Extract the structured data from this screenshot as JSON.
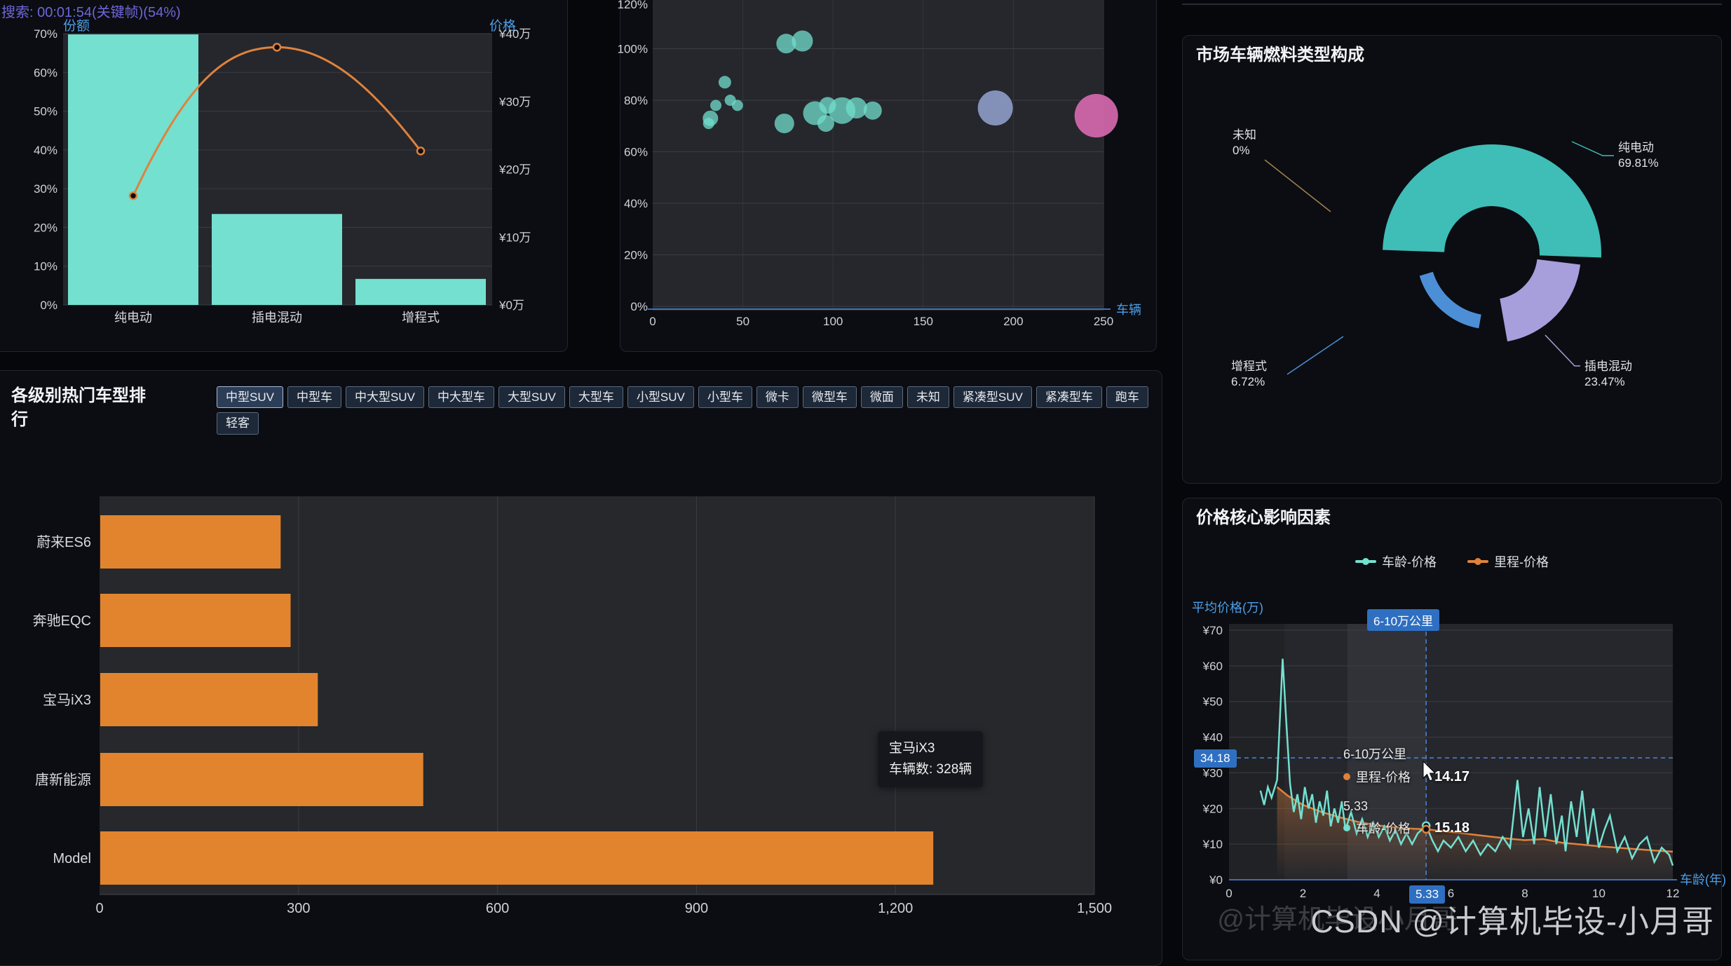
{
  "page": {
    "caption": "搜索: 00:01:54(关键帧)(54%)",
    "watermark": "CSDN @计算机毕设-小月哥",
    "watermark_ghost": "@计算机毕设小月哥"
  },
  "colors": {
    "teal": "#74e0d0",
    "orange": "#e0823c",
    "bar_orange": "#e2842e",
    "axis_blue": "#4d9fe8",
    "badge_blue": "#2f6fc1",
    "slate": "#8e9dc9",
    "pink": "#d468ae",
    "pie_teal": "#3fbdb7",
    "pie_purple": "#a79fdc",
    "pie_blue": "#4d8fd6",
    "pie_unknown_line": "#a5824f"
  },
  "share_chart": {
    "legend_left": "份额",
    "legend_right": "价格"
  },
  "fuel_panel": {
    "title": "市场车辆燃料类型构成"
  },
  "ranking_panel": {
    "title": "各级别热门车型排行",
    "filters": [
      {
        "label": "中型SUV",
        "active": true
      },
      {
        "label": "中型车"
      },
      {
        "label": "中大型SUV"
      },
      {
        "label": "中大型车"
      },
      {
        "label": "大型SUV"
      },
      {
        "label": "大型车"
      },
      {
        "label": "小型SUV"
      },
      {
        "label": "小型车"
      },
      {
        "label": "微卡"
      },
      {
        "label": "微型车"
      },
      {
        "label": "微面"
      },
      {
        "label": "未知"
      },
      {
        "label": "紧凑型SUV"
      },
      {
        "label": "紧凑型车"
      },
      {
        "label": "跑车"
      },
      {
        "label": "轻客"
      }
    ],
    "tooltip": {
      "line1": "宝马iX3",
      "line2": "车辆数: 328辆"
    }
  },
  "price_panel": {
    "title": "价格核心影响因素",
    "legend": [
      {
        "label": "车龄-价格",
        "color": "#74e0d0"
      },
      {
        "label": "里程-价格",
        "color": "#e0823c"
      }
    ],
    "badges": {
      "top": "6-10万公里",
      "y": "34.18",
      "x": "5.33"
    },
    "tooltip_a": {
      "header": "6-10万公里",
      "label": "里程-价格",
      "value": "14.17"
    },
    "tooltip_b": {
      "header": "5.33",
      "label": "车龄-价格",
      "value": "15.18"
    }
  },
  "chart_data": [
    {
      "id": "fuel-share-price",
      "type": "bar",
      "categories": [
        "纯电动",
        "插电混动",
        "增程式"
      ],
      "series": [
        {
          "name": "份额",
          "type": "bar",
          "unit": "%",
          "values": [
            69.81,
            23.47,
            6.72
          ]
        },
        {
          "name": "价格",
          "type": "line",
          "unit": "万",
          "values": [
            16.1,
            38.0,
            22.7
          ]
        }
      ],
      "y_left_ticks": [
        "0%",
        "10%",
        "20%",
        "30%",
        "40%",
        "50%",
        "60%",
        "70%"
      ],
      "y_left_lim": [
        0,
        70
      ],
      "y_right_ticks": [
        "¥0万",
        "¥10万",
        "¥20万",
        "¥30万",
        "¥40万"
      ],
      "y_right_lim": [
        0,
        40
      ]
    },
    {
      "id": "vehicle-bubbles",
      "type": "scatter",
      "xlabel": "车辆",
      "x_ticks": [
        0,
        50,
        100,
        150,
        200,
        250
      ],
      "xlim": [
        0,
        250
      ],
      "y_ticks": [
        "0%",
        "20%",
        "40%",
        "60%",
        "80%",
        "100%",
        "120%"
      ],
      "ylim": [
        0,
        120
      ],
      "points": [
        {
          "x": 32,
          "y": 73,
          "r": 11,
          "color": "teal"
        },
        {
          "x": 40,
          "y": 87,
          "r": 9,
          "color": "teal"
        },
        {
          "x": 35,
          "y": 78,
          "r": 8,
          "color": "teal"
        },
        {
          "x": 43,
          "y": 80,
          "r": 8,
          "color": "teal"
        },
        {
          "x": 47,
          "y": 78,
          "r": 8,
          "color": "teal"
        },
        {
          "x": 31,
          "y": 71,
          "r": 8,
          "color": "teal"
        },
        {
          "x": 74,
          "y": 102,
          "r": 14,
          "color": "teal"
        },
        {
          "x": 83,
          "y": 103,
          "r": 15,
          "color": "teal"
        },
        {
          "x": 73,
          "y": 71,
          "r": 14,
          "color": "teal"
        },
        {
          "x": 90,
          "y": 75,
          "r": 17,
          "color": "teal"
        },
        {
          "x": 97,
          "y": 78,
          "r": 12,
          "color": "teal"
        },
        {
          "x": 105,
          "y": 76,
          "r": 19,
          "color": "teal"
        },
        {
          "x": 113,
          "y": 77,
          "r": 15,
          "color": "teal"
        },
        {
          "x": 122,
          "y": 76,
          "r": 13,
          "color": "teal"
        },
        {
          "x": 96,
          "y": 71,
          "r": 12,
          "color": "teal"
        },
        {
          "x": 190,
          "y": 77,
          "r": 25,
          "color": "slate"
        },
        {
          "x": 246,
          "y": 74,
          "r": 31,
          "color": "pink"
        }
      ]
    },
    {
      "id": "fuel-type-pie",
      "type": "pie",
      "title": "市场车辆燃料类型构成",
      "slices": [
        {
          "label": "纯电动",
          "pct": "69.81%",
          "value": 69.81,
          "color": "#3fbdb7"
        },
        {
          "label": "插电混动",
          "pct": "23.47%",
          "value": 23.47,
          "color": "#a79fdc"
        },
        {
          "label": "增程式",
          "pct": "6.72%",
          "value": 6.72,
          "color": "#4d8fd6"
        },
        {
          "label": "未知",
          "pct": "0%",
          "value": 0,
          "color": "#a5824f"
        }
      ]
    },
    {
      "id": "model-ranking",
      "type": "bar",
      "orientation": "horizontal",
      "categories": [
        "蔚来ES6",
        "奔驰EQC",
        "宝马iX3",
        "唐新能源",
        "Model"
      ],
      "values": [
        272,
        287,
        328,
        487,
        1256
      ],
      "x_ticks": [
        "0",
        "300",
        "600",
        "900",
        "1,200",
        "1,500"
      ],
      "xlim": [
        0,
        1500
      ]
    },
    {
      "id": "price-factors",
      "type": "line",
      "ylabel": "平均价格(万)",
      "xlabel": "车龄(年)",
      "y_ticks": [
        "¥0",
        "¥10",
        "¥20",
        "¥30",
        "¥40",
        "¥50",
        "¥60",
        "¥70"
      ],
      "ylim": [
        0,
        70
      ],
      "x_ticks": [
        0,
        2,
        4,
        6,
        8,
        10,
        12
      ],
      "xlim": [
        0,
        12
      ],
      "crosshair": {
        "x": 5.33,
        "y": 34.18
      },
      "series": [
        {
          "name": "车龄-价格",
          "color": "#74e0d0",
          "points": [
            [
              0.85,
              25
            ],
            [
              0.95,
              21
            ],
            [
              1.05,
              26
            ],
            [
              1.15,
              23
            ],
            [
              1.3,
              28
            ],
            [
              1.45,
              62
            ],
            [
              1.55,
              44
            ],
            [
              1.65,
              27
            ],
            [
              1.75,
              19
            ],
            [
              1.85,
              24
            ],
            [
              1.95,
              17
            ],
            [
              2.05,
              26
            ],
            [
              2.15,
              20
            ],
            [
              2.25,
              24
            ],
            [
              2.35,
              16
            ],
            [
              2.45,
              22
            ],
            [
              2.55,
              18
            ],
            [
              2.65,
              25
            ],
            [
              2.75,
              15
            ],
            [
              2.85,
              20
            ],
            [
              2.95,
              16
            ],
            [
              3.05,
              22
            ],
            [
              3.15,
              14
            ],
            [
              3.3,
              19
            ],
            [
              3.45,
              13
            ],
            [
              3.6,
              17
            ],
            [
              3.75,
              12
            ],
            [
              3.9,
              16
            ],
            [
              4.05,
              12
            ],
            [
              4.2,
              15
            ],
            [
              4.35,
              11
            ],
            [
              4.5,
              14
            ],
            [
              4.65,
              10
            ],
            [
              4.8,
              13
            ],
            [
              4.95,
              10
            ],
            [
              5.1,
              13
            ],
            [
              5.33,
              15.18
            ],
            [
              5.5,
              11
            ],
            [
              5.65,
              8
            ],
            [
              5.8,
              11
            ],
            [
              6,
              9
            ],
            [
              6.2,
              12
            ],
            [
              6.4,
              8
            ],
            [
              6.6,
              11
            ],
            [
              6.8,
              7
            ],
            [
              7,
              10
            ],
            [
              7.2,
              8
            ],
            [
              7.4,
              12
            ],
            [
              7.6,
              9
            ],
            [
              7.8,
              28
            ],
            [
              7.95,
              12
            ],
            [
              8.1,
              20
            ],
            [
              8.25,
              10
            ],
            [
              8.4,
              26
            ],
            [
              8.55,
              12
            ],
            [
              8.7,
              24
            ],
            [
              8.85,
              10
            ],
            [
              9,
              18
            ],
            [
              9.1,
              8
            ],
            [
              9.25,
              22
            ],
            [
              9.4,
              12
            ],
            [
              9.55,
              25
            ],
            [
              9.7,
              10
            ],
            [
              9.85,
              20
            ],
            [
              10,
              9
            ],
            [
              10.15,
              14
            ],
            [
              10.3,
              18
            ],
            [
              10.5,
              8
            ],
            [
              10.7,
              12
            ],
            [
              10.9,
              6
            ],
            [
              11.1,
              10
            ],
            [
              11.3,
              12
            ],
            [
              11.5,
              5
            ],
            [
              11.7,
              9
            ],
            [
              11.9,
              7
            ],
            [
              12,
              4
            ]
          ]
        },
        {
          "name": "里程-价格",
          "color": "#e0823c",
          "points": [
            [
              1.3,
              26
            ],
            [
              1.6,
              23.5
            ],
            [
              2,
              21
            ],
            [
              2.5,
              19
            ],
            [
              3,
              17.5
            ],
            [
              3.5,
              16.2
            ],
            [
              4,
              15.3
            ],
            [
              4.5,
              14.7
            ],
            [
              5,
              14.3
            ],
            [
              5.33,
              14.17
            ],
            [
              6,
              13.4
            ],
            [
              6.5,
              12.8
            ],
            [
              7,
              12.2
            ],
            [
              7.5,
              11.6
            ],
            [
              8,
              11.1
            ],
            [
              8.5,
              11.4
            ],
            [
              9,
              10.4
            ],
            [
              9.5,
              9.9
            ],
            [
              10,
              9.4
            ],
            [
              10.5,
              9
            ],
            [
              11,
              8.6
            ],
            [
              11.5,
              8.2
            ],
            [
              12,
              7.9
            ]
          ]
        }
      ]
    }
  ]
}
